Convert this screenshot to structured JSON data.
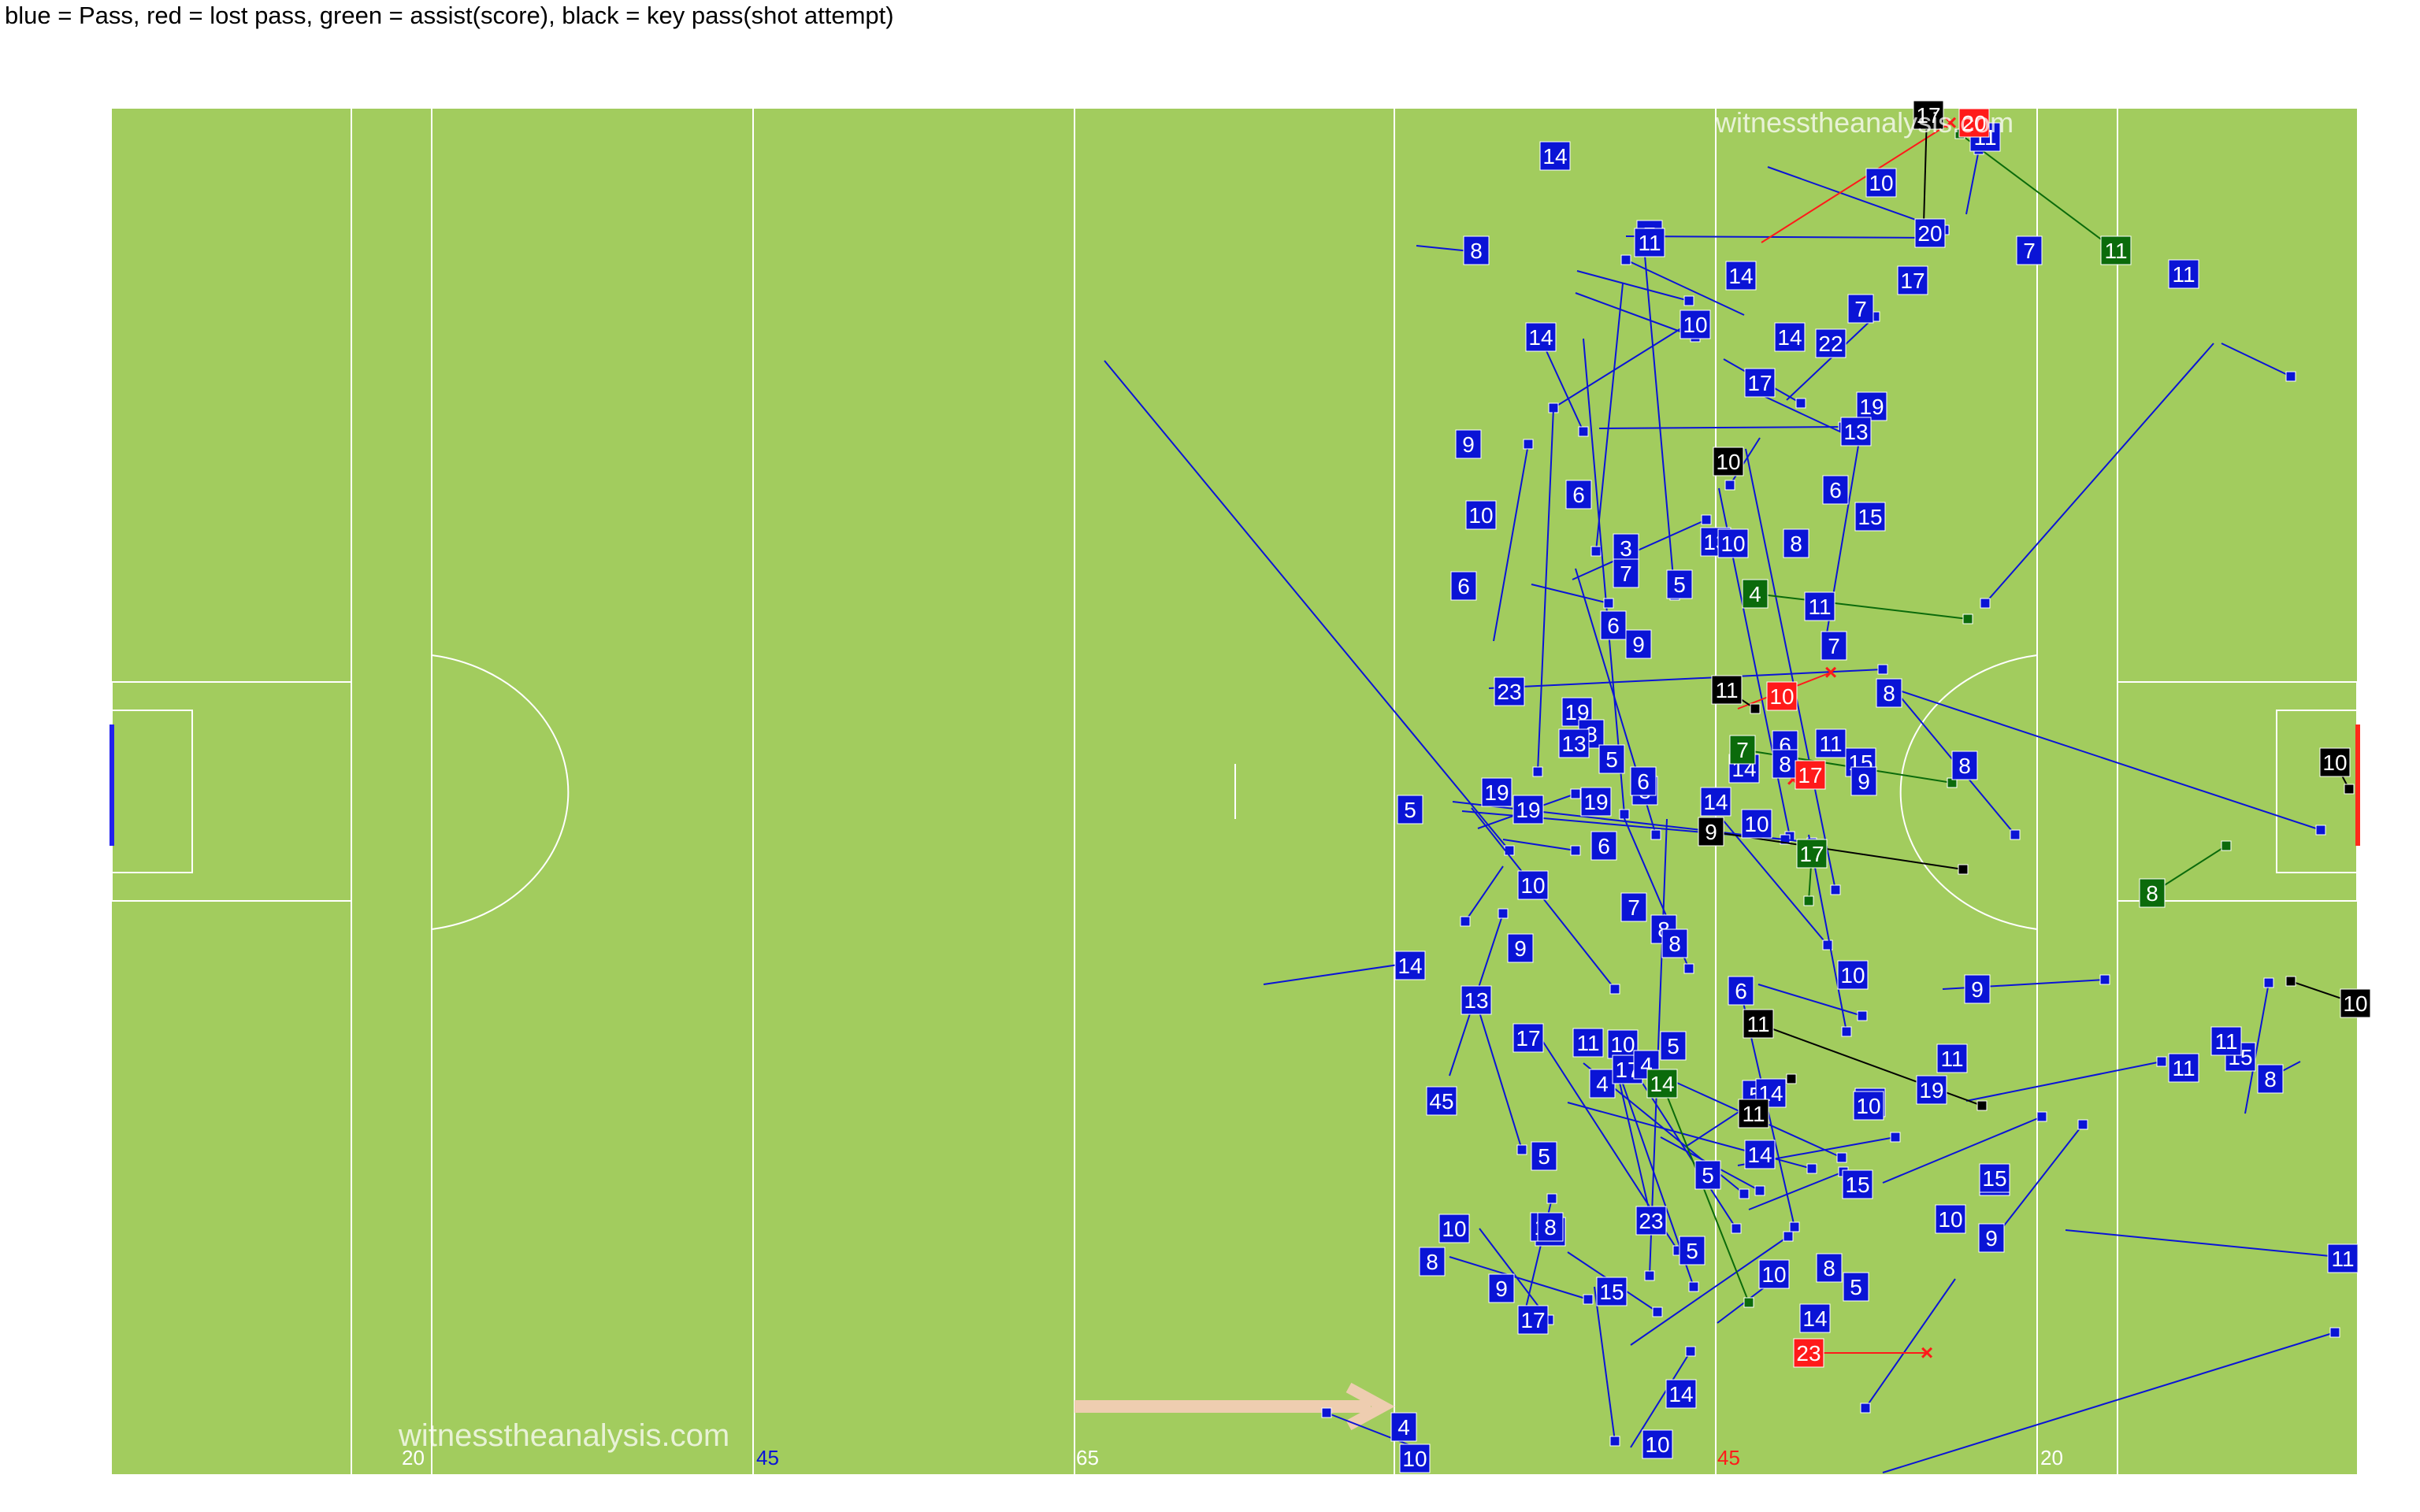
{
  "caption": "blue = Pass, red = lost pass, green = assist(score), black = key pass(shot attempt)",
  "watermark_top": "witnesstheanalysis.com",
  "watermark_bottom": "witnesstheanalysis.com",
  "colors": {
    "pitch": "#a2cc5e",
    "lines": "#ffffff",
    "pass": "#0a14d6",
    "lost": "#ff1a1a",
    "assist": "#0b6b0b",
    "key": "#000000",
    "arrow": "#eecdb0",
    "goal_left": "#2222ee",
    "goal_right": "#ff2a1a"
  },
  "pitch_labels": [
    {
      "text": "20",
      "color": "#ffffff"
    },
    {
      "text": "45",
      "color": "#0a14d6"
    },
    {
      "text": "65",
      "color": "#ffffff"
    },
    {
      "text": "45",
      "color": "#ff1a1a"
    },
    {
      "text": "20",
      "color": "#ffffff"
    }
  ],
  "markers": [
    {
      "t": "pass",
      "n": "14"
    },
    {
      "t": "pass",
      "n": "10"
    },
    {
      "t": "pass",
      "n": "8"
    },
    {
      "t": "pass",
      "n": "7"
    },
    {
      "t": "pass",
      "n": "11"
    },
    {
      "t": "pass",
      "n": "20"
    },
    {
      "t": "pass",
      "n": "7"
    },
    {
      "t": "pass",
      "n": "17"
    },
    {
      "t": "pass",
      "n": "14"
    },
    {
      "t": "pass",
      "n": "10"
    },
    {
      "t": "pass",
      "n": "14"
    },
    {
      "t": "pass",
      "n": "22"
    },
    {
      "t": "pass",
      "n": "7"
    },
    {
      "t": "pass",
      "n": "11"
    },
    {
      "t": "pass",
      "n": "11"
    },
    {
      "t": "pass",
      "n": "14"
    },
    {
      "t": "pass",
      "n": "17"
    },
    {
      "t": "pass",
      "n": "19"
    },
    {
      "t": "pass",
      "n": "13"
    },
    {
      "t": "pass",
      "n": "9"
    },
    {
      "t": "pass",
      "n": "10"
    },
    {
      "t": "pass",
      "n": "6"
    },
    {
      "t": "pass",
      "n": "6"
    },
    {
      "t": "pass",
      "n": "15"
    },
    {
      "t": "pass",
      "n": "3"
    },
    {
      "t": "pass",
      "n": "13"
    },
    {
      "t": "pass",
      "n": "7"
    },
    {
      "t": "pass",
      "n": "5"
    },
    {
      "t": "pass",
      "n": "6"
    },
    {
      "t": "pass",
      "n": "11"
    },
    {
      "t": "pass",
      "n": "6"
    },
    {
      "t": "pass",
      "n": "9"
    },
    {
      "t": "pass",
      "n": "7"
    },
    {
      "t": "pass",
      "n": "23"
    },
    {
      "t": "pass",
      "n": "8"
    },
    {
      "t": "pass",
      "n": "19"
    },
    {
      "t": "pass",
      "n": "8"
    },
    {
      "t": "pass",
      "n": "5"
    },
    {
      "t": "pass",
      "n": "6"
    },
    {
      "t": "pass",
      "n": "11"
    },
    {
      "t": "pass",
      "n": "15"
    },
    {
      "t": "pass",
      "n": "14"
    },
    {
      "t": "pass",
      "n": "9"
    },
    {
      "t": "pass",
      "n": "8"
    },
    {
      "t": "pass",
      "n": "8"
    },
    {
      "t": "pass",
      "n": "5"
    },
    {
      "t": "pass",
      "n": "19"
    },
    {
      "t": "pass",
      "n": "19"
    },
    {
      "t": "pass",
      "n": "19"
    },
    {
      "t": "pass",
      "n": "6"
    },
    {
      "t": "pass",
      "n": "8"
    },
    {
      "t": "pass",
      "n": "10"
    },
    {
      "t": "pass",
      "n": "6"
    },
    {
      "t": "pass",
      "n": "10"
    },
    {
      "t": "pass",
      "n": "7"
    },
    {
      "t": "pass",
      "n": "8"
    },
    {
      "t": "pass",
      "n": "8"
    },
    {
      "t": "pass",
      "n": "9"
    },
    {
      "t": "pass",
      "n": "14"
    },
    {
      "t": "pass",
      "n": "13"
    },
    {
      "t": "pass",
      "n": "17"
    },
    {
      "t": "pass",
      "n": "10"
    },
    {
      "t": "pass",
      "n": "4"
    },
    {
      "t": "pass",
      "n": "17"
    },
    {
      "t": "pass",
      "n": "5"
    },
    {
      "t": "pass",
      "n": "4"
    },
    {
      "t": "pass",
      "n": "6"
    },
    {
      "t": "pass",
      "n": "10"
    },
    {
      "t": "pass",
      "n": "9"
    },
    {
      "t": "pass",
      "n": "11"
    },
    {
      "t": "pass",
      "n": "19"
    },
    {
      "t": "pass",
      "n": "14"
    },
    {
      "t": "pass",
      "n": "10"
    },
    {
      "t": "pass",
      "n": "5"
    },
    {
      "t": "pass",
      "n": "11"
    },
    {
      "t": "pass",
      "n": "15"
    },
    {
      "t": "pass",
      "n": "8"
    },
    {
      "t": "pass",
      "n": "45"
    },
    {
      "t": "pass",
      "n": "5"
    },
    {
      "t": "pass",
      "n": "5"
    },
    {
      "t": "pass",
      "n": "15"
    },
    {
      "t": "pass",
      "n": "14"
    },
    {
      "t": "pass",
      "n": "9"
    },
    {
      "t": "pass",
      "n": "11"
    },
    {
      "t": "pass",
      "n": "10"
    },
    {
      "t": "pass",
      "n": "19"
    },
    {
      "t": "pass",
      "n": "23"
    },
    {
      "t": "pass",
      "n": "8"
    },
    {
      "t": "pass",
      "n": "9"
    },
    {
      "t": "pass",
      "n": "5"
    },
    {
      "t": "pass",
      "n": "10"
    },
    {
      "t": "pass",
      "n": "8"
    },
    {
      "t": "pass",
      "n": "5"
    },
    {
      "t": "pass",
      "n": "17"
    },
    {
      "t": "pass",
      "n": "15"
    },
    {
      "t": "pass",
      "n": "14"
    },
    {
      "t": "pass",
      "n": "14"
    },
    {
      "t": "pass",
      "n": "10"
    },
    {
      "t": "pass",
      "n": "4"
    },
    {
      "t": "pass",
      "n": "10"
    },
    {
      "t": "pass",
      "n": "10"
    },
    {
      "t": "pass",
      "n": "15"
    },
    {
      "t": "pass",
      "n": "11"
    },
    {
      "t": "pass",
      "n": "8"
    },
    {
      "t": "pass",
      "n": "11"
    },
    {
      "t": "pass",
      "n": "11"
    },
    {
      "t": "pass",
      "n": "14"
    },
    {
      "t": "pass",
      "n": "13"
    },
    {
      "t": "pass",
      "n": "14"
    },
    {
      "t": "pass",
      "n": "14"
    },
    {
      "t": "pass",
      "n": "10"
    },
    {
      "t": "pass",
      "n": "8"
    },
    {
      "t": "lost",
      "n": "20"
    },
    {
      "t": "lost",
      "n": "10"
    },
    {
      "t": "lost",
      "n": "17"
    },
    {
      "t": "lost",
      "n": "23"
    },
    {
      "t": "key",
      "n": "17"
    },
    {
      "t": "key",
      "n": "10"
    },
    {
      "t": "key",
      "n": "11"
    },
    {
      "t": "key",
      "n": "9"
    },
    {
      "t": "key",
      "n": "11"
    },
    {
      "t": "key",
      "n": "11"
    },
    {
      "t": "key",
      "n": "10"
    },
    {
      "t": "key",
      "n": "10"
    },
    {
      "t": "assist",
      "n": "11"
    },
    {
      "t": "assist",
      "n": "4"
    },
    {
      "t": "assist",
      "n": "7"
    },
    {
      "t": "assist",
      "n": "17"
    },
    {
      "t": "assist",
      "n": "14"
    },
    {
      "t": "assist",
      "n": "8"
    }
  ]
}
